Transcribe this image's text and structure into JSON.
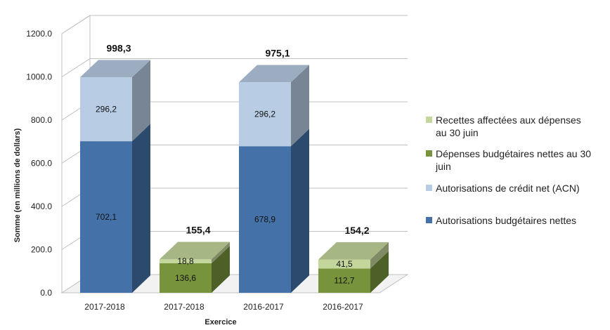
{
  "chart_data": {
    "type": "bar",
    "stacked": true,
    "three_d": true,
    "categories": [
      "2017-2018",
      "2017-2018",
      "2016-2017",
      "2016-2017"
    ],
    "xlabel": "Exercice",
    "ylabel": "Somme (en millions de dollars)",
    "ylim": [
      0,
      1200
    ],
    "yticks": [
      "0.0",
      "200.0",
      "400.0",
      "600.0",
      "800.0",
      "1000.0",
      "1200.0"
    ],
    "grid": true,
    "legend_position": "right",
    "series": [
      {
        "name": "Autorisations budgétaires nettes",
        "values": [
          702.1,
          null,
          678.9,
          null
        ],
        "labels": [
          "702,1",
          "",
          "678,9",
          ""
        ],
        "color": "#4472a8"
      },
      {
        "name": "Autorisations de crédit net (ACN)",
        "values": [
          296.2,
          null,
          296.2,
          null
        ],
        "labels": [
          "296,2",
          "",
          "296,2",
          ""
        ],
        "color": "#b8cce4"
      },
      {
        "name": "Dépenses budgétaires nettes au 30 juin",
        "values": [
          null,
          136.6,
          null,
          112.7
        ],
        "labels": [
          "",
          "136,6",
          "",
          "112,7"
        ],
        "color": "#77933c"
      },
      {
        "name": "Recettes affectées aux dépenses au 30 juin",
        "values": [
          null,
          18.8,
          null,
          41.5
        ],
        "labels": [
          "",
          "18,8",
          "",
          "41,5"
        ],
        "color": "#c3d69b"
      }
    ],
    "totals": [
      "998,3",
      "155,4",
      "975,1",
      "154,2"
    ],
    "legend": [
      {
        "lines": [
          "Recettes affectées aux dépenses",
          "au 30 juin"
        ],
        "color": "#c3d69b"
      },
      {
        "lines": [
          "Dépenses budgétaires nettes au 30",
          "juin"
        ],
        "color": "#77933c"
      },
      {
        "lines": [
          "Autorisations de crédit net (ACN)"
        ],
        "color": "#b8cce4"
      },
      {
        "lines": [
          "Autorisations budgétaires nettes"
        ],
        "color": "#4472a8"
      }
    ]
  }
}
